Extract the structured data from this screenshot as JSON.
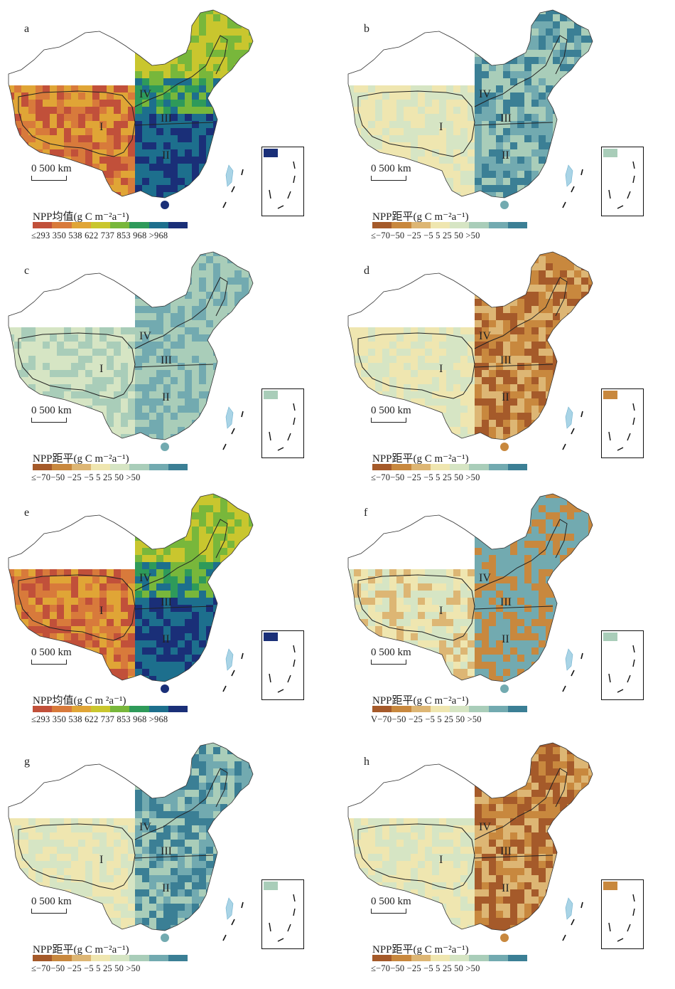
{
  "scale_text": "0 500 km",
  "regions": [
    "I",
    "II",
    "III",
    "IV"
  ],
  "palettes": {
    "mean": [
      "#c1503a",
      "#d87a3b",
      "#e0a536",
      "#c9c62e",
      "#78b73b",
      "#2e9a5a",
      "#1d6f8d",
      "#1a2f78"
    ],
    "anom": [
      "#a55a2a",
      "#c8883e",
      "#ddb674",
      "#efe6b0",
      "#d6e5c4",
      "#a9cdb9",
      "#72aab0",
      "#3b7f95"
    ]
  },
  "panels": [
    {
      "letter": "a",
      "kind": "mean",
      "legend_title": "NPP均值(g C m⁻²a⁻¹)",
      "ticks": "≤293 350 538 622 737 853 968 >968"
    },
    {
      "letter": "b",
      "kind": "anom",
      "tone": "wet",
      "legend_title": "NPP距平(g C m⁻²a⁻¹)",
      "ticks": "≤−70−50 −25 −5 5 25 50 >50"
    },
    {
      "letter": "c",
      "kind": "anom",
      "tone": "mild",
      "legend_title": "NPP距平(g C m⁻²a⁻¹)",
      "ticks": "≤−70−50 −25 −5 5 25 50 >50"
    },
    {
      "letter": "d",
      "kind": "anom",
      "tone": "dry",
      "legend_title": "NPP距平(g C m⁻²a⁻¹)",
      "ticks": "≤−70−50 −25 −5 5 25 50 >50"
    },
    {
      "letter": "e",
      "kind": "mean",
      "legend_title": "NPP均值(g C m ²a⁻¹)",
      "ticks": "≤293 350 538 622 737 853 968 >968"
    },
    {
      "letter": "f",
      "kind": "anom",
      "tone": "mixed",
      "legend_title": "NPP距平(g C m⁻²a⁻¹)",
      "ticks": "V−70−50 −25 −5 5 25 50 >50"
    },
    {
      "letter": "g",
      "kind": "anom",
      "tone": "wet",
      "legend_title": "NPP距平(g C m⁻²a⁻¹)",
      "ticks": "≤−70−50 −25 −5 5 25 50 >50"
    },
    {
      "letter": "h",
      "kind": "anom",
      "tone": "dry",
      "legend_title": "NPP距平(g C m⁻²a⁻¹)",
      "ticks": "≤−70−50 −25 −5 5 25 50 >50"
    }
  ]
}
